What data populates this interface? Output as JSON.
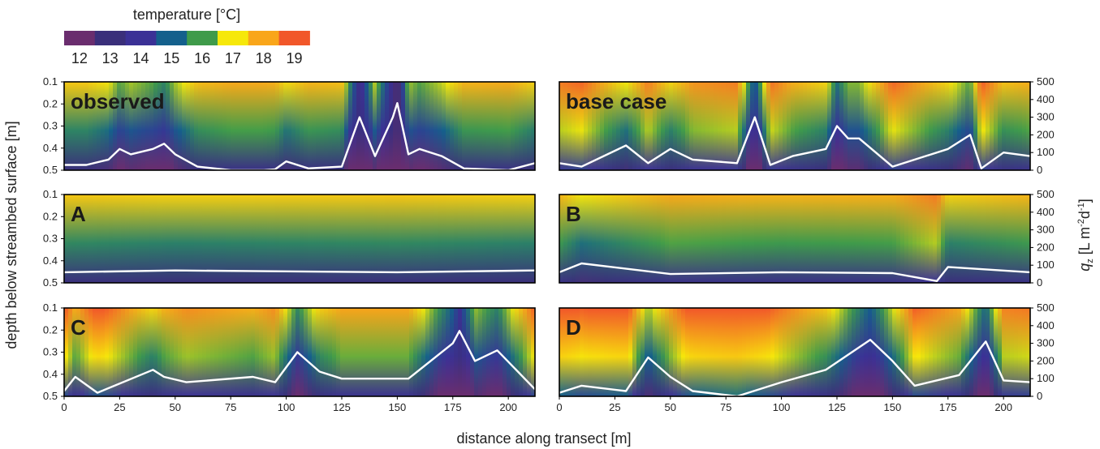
{
  "colorbar": {
    "title": "temperature [°C]",
    "ticks": [
      "12",
      "13",
      "14",
      "15",
      "16",
      "17",
      "18",
      "19"
    ],
    "colors": [
      "#6a2d6e",
      "#3a2f7a",
      "#3b3196",
      "#14608c",
      "#3f9b4a",
      "#f6e80a",
      "#f9a61a",
      "#f1572a"
    ]
  },
  "axes": {
    "xlabel": "distance along transect [m]",
    "ylabel_left": "depth below streambed surface [m]",
    "ylabel_right": "q_z [L m^-2 d^-1]",
    "ylabel_right_main": "q",
    "ylabel_right_sub": "z",
    "ylabel_right_rest": " [L m",
    "ylabel_right_sup1": "-2",
    "ylabel_right_mid": "d",
    "ylabel_right_sup2": "-1",
    "ylabel_right_end": "]",
    "x_ticks": [
      "0",
      "25",
      "50",
      "75",
      "100",
      "125",
      "150",
      "175",
      "200"
    ],
    "depth_ticks": [
      "0.1",
      "0.2",
      "0.3",
      "0.4",
      "0.5"
    ],
    "flux_ticks": [
      "500",
      "400",
      "300",
      "200",
      "100",
      "0"
    ]
  },
  "chart_data": [
    {
      "type": "heatmap",
      "panel": "observed",
      "xlim": [
        0,
        212
      ],
      "ylim_depth": [
        0.1,
        0.5
      ],
      "ylim_flux": [
        0,
        500
      ],
      "flux_profile_x": [
        0,
        10,
        20,
        25,
        30,
        40,
        45,
        50,
        60,
        75,
        90,
        95,
        100,
        110,
        125,
        133,
        140,
        148,
        150,
        155,
        160,
        170,
        180,
        200,
        212
      ],
      "flux_profile_y": [
        30,
        30,
        60,
        120,
        90,
        120,
        150,
        90,
        20,
        0,
        0,
        5,
        50,
        10,
        20,
        300,
        80,
        300,
        380,
        90,
        120,
        80,
        10,
        0,
        40
      ]
    },
    {
      "type": "heatmap",
      "panel": "base case",
      "xlim": [
        0,
        212
      ],
      "ylim_depth": [
        0.1,
        0.5
      ],
      "ylim_flux": [
        0,
        500
      ],
      "flux_profile_x": [
        0,
        10,
        30,
        40,
        50,
        60,
        80,
        88,
        95,
        105,
        120,
        125,
        130,
        135,
        150,
        175,
        185,
        190,
        200,
        212
      ],
      "flux_profile_y": [
        40,
        20,
        140,
        40,
        120,
        60,
        40,
        300,
        30,
        80,
        120,
        250,
        180,
        180,
        20,
        120,
        200,
        10,
        100,
        80
      ]
    },
    {
      "type": "heatmap",
      "panel": "A",
      "xlim": [
        0,
        212
      ],
      "ylim_depth": [
        0.1,
        0.5
      ],
      "ylim_flux": [
        0,
        500
      ],
      "flux_profile_x": [
        0,
        50,
        100,
        150,
        212
      ],
      "flux_profile_y": [
        60,
        70,
        65,
        60,
        70
      ]
    },
    {
      "type": "heatmap",
      "panel": "B",
      "xlim": [
        0,
        212
      ],
      "ylim_depth": [
        0.1,
        0.5
      ],
      "ylim_flux": [
        0,
        500
      ],
      "flux_profile_x": [
        0,
        10,
        50,
        100,
        150,
        170,
        175,
        212
      ],
      "flux_profile_y": [
        60,
        110,
        50,
        60,
        55,
        10,
        90,
        60
      ]
    },
    {
      "type": "heatmap",
      "panel": "C",
      "xlim": [
        0,
        212
      ],
      "ylim_depth": [
        0.1,
        0.5
      ],
      "ylim_flux": [
        0,
        500
      ],
      "flux_profile_x": [
        0,
        5,
        15,
        40,
        45,
        55,
        85,
        95,
        105,
        115,
        125,
        155,
        175,
        178,
        185,
        195,
        212
      ],
      "flux_profile_y": [
        30,
        110,
        20,
        150,
        110,
        80,
        110,
        80,
        250,
        140,
        100,
        100,
        300,
        370,
        200,
        260,
        40
      ]
    },
    {
      "type": "heatmap",
      "panel": "D",
      "xlim": [
        0,
        212
      ],
      "ylim_depth": [
        0.1,
        0.5
      ],
      "ylim_flux": [
        0,
        500
      ],
      "flux_profile_x": [
        0,
        10,
        30,
        40,
        50,
        60,
        80,
        100,
        120,
        140,
        150,
        160,
        180,
        192,
        200,
        212
      ],
      "flux_profile_y": [
        20,
        60,
        30,
        220,
        110,
        30,
        0,
        80,
        150,
        320,
        200,
        60,
        120,
        310,
        90,
        80
      ]
    }
  ]
}
